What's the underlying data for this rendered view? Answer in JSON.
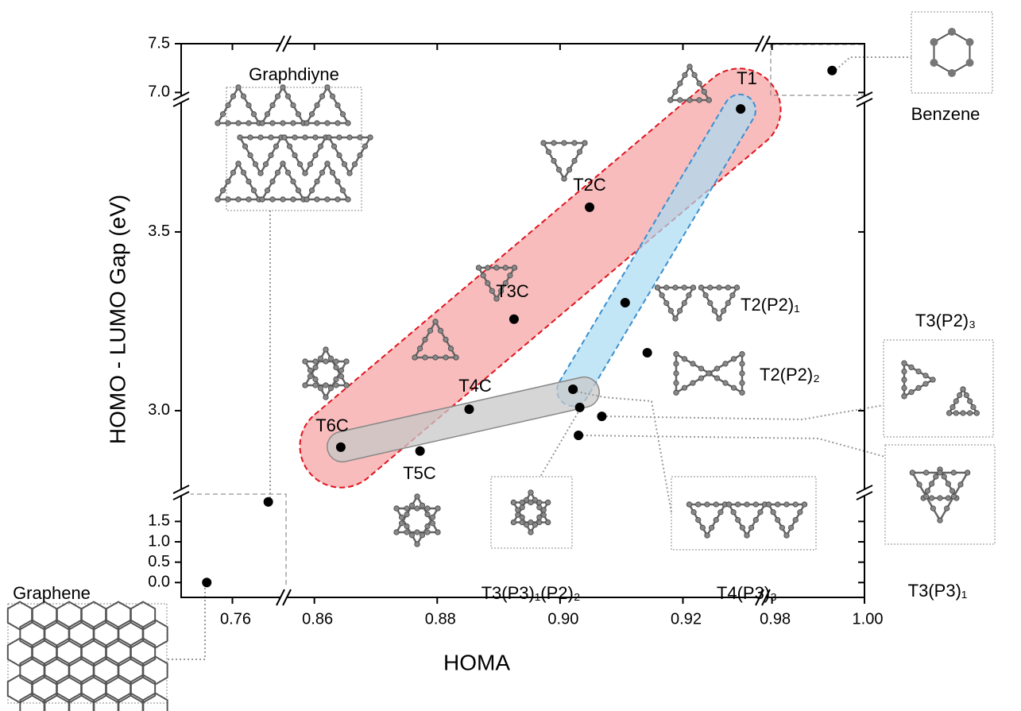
{
  "chart_data": {
    "type": "scatter",
    "x_label": "HOMA",
    "y_label": "HOMO - LUMO Gap (eV)",
    "x_segments": [
      {
        "xlim": [
          0.75,
          0.77
        ],
        "xticks": [
          0.76
        ]
      },
      {
        "xlim": [
          0.855,
          0.933
        ],
        "xticks": [
          0.86,
          0.88,
          {
            "value": 0.9,
            "label": "0.90"
          },
          0.92
        ]
      },
      {
        "xlim": [
          0.978,
          1.0
        ],
        "xticks": [
          0.98,
          {
            "value": 1.0,
            "label": "1.00"
          }
        ]
      }
    ],
    "y_segments": [
      {
        "ylim": [
          -0.365,
          2.21
        ],
        "yticks": [
          {
            "value": 0,
            "label": "0.0"
          },
          0.5,
          {
            "value": 1,
            "label": "1.0"
          },
          1.5
        ]
      },
      {
        "ylim": [
          2.771,
          3.871
        ],
        "yticks": [
          {
            "value": 3,
            "label": "3.0"
          },
          3.5
        ]
      },
      {
        "ylim": [
          6.93,
          7.5
        ],
        "yticks": [
          {
            "value": 7,
            "label": "7.0"
          },
          7.5
        ]
      }
    ],
    "series": [
      {
        "color": "#000000",
        "names": [
          "Graphene",
          "Graphdiyne",
          "T6C",
          "T5C",
          "T4C",
          "T3C",
          "T2C",
          "T1",
          "T2(P2)₁",
          "T2(P2)₂",
          "T3(P2)₃",
          "T3(P3)₁",
          "T3(P3)₁(P2)₂",
          "T4(P3)₃",
          "Benzene"
        ],
        "x": [
          0.755,
          0.767,
          0.8643,
          0.8772,
          0.8852,
          0.8925,
          0.9048,
          0.9294,
          0.9106,
          0.9142,
          0.9021,
          0.9032,
          0.9068,
          0.903,
          0.993
        ],
        "y": [
          0.0,
          1.98,
          2.898,
          2.887,
          3.004,
          3.256,
          3.569,
          3.844,
          3.302,
          3.162,
          3.06,
          3.009,
          2.984,
          2.931,
          7.225
        ]
      }
    ]
  }
}
